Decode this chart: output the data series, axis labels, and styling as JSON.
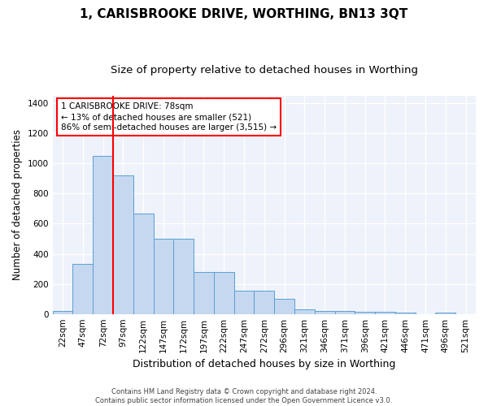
{
  "title": "1, CARISBROOKE DRIVE, WORTHING, BN13 3QT",
  "subtitle": "Size of property relative to detached houses in Worthing",
  "xlabel": "Distribution of detached houses by size in Worthing",
  "ylabel": "Number of detached properties",
  "bar_color": "#c5d8f0",
  "bar_edge_color": "#5a9fd4",
  "background_color": "#eef2fa",
  "grid_color": "#ffffff",
  "bins": [
    "22sqm",
    "47sqm",
    "72sqm",
    "97sqm",
    "122sqm",
    "147sqm",
    "172sqm",
    "197sqm",
    "222sqm",
    "247sqm",
    "272sqm",
    "296sqm",
    "321sqm",
    "346sqm",
    "371sqm",
    "396sqm",
    "421sqm",
    "446sqm",
    "471sqm",
    "496sqm",
    "521sqm"
  ],
  "values": [
    20,
    330,
    1050,
    920,
    665,
    500,
    500,
    280,
    280,
    155,
    155,
    100,
    33,
    20,
    20,
    15,
    15,
    10,
    0,
    8,
    0
  ],
  "ylim": [
    0,
    1450
  ],
  "yticks": [
    0,
    200,
    400,
    600,
    800,
    1000,
    1200,
    1400
  ],
  "red_line_x": 2.5,
  "annotation_text": "1 CARISBROOKE DRIVE: 78sqm\n← 13% of detached houses are smaller (521)\n86% of semi-detached houses are larger (3,515) →",
  "footer_text": "Contains HM Land Registry data © Crown copyright and database right 2024.\nContains public sector information licensed under the Open Government Licence v3.0.",
  "title_fontsize": 11,
  "subtitle_fontsize": 9.5,
  "tick_fontsize": 7.5,
  "ylabel_fontsize": 8.5,
  "xlabel_fontsize": 9,
  "footer_fontsize": 6,
  "annotation_fontsize": 7.5
}
